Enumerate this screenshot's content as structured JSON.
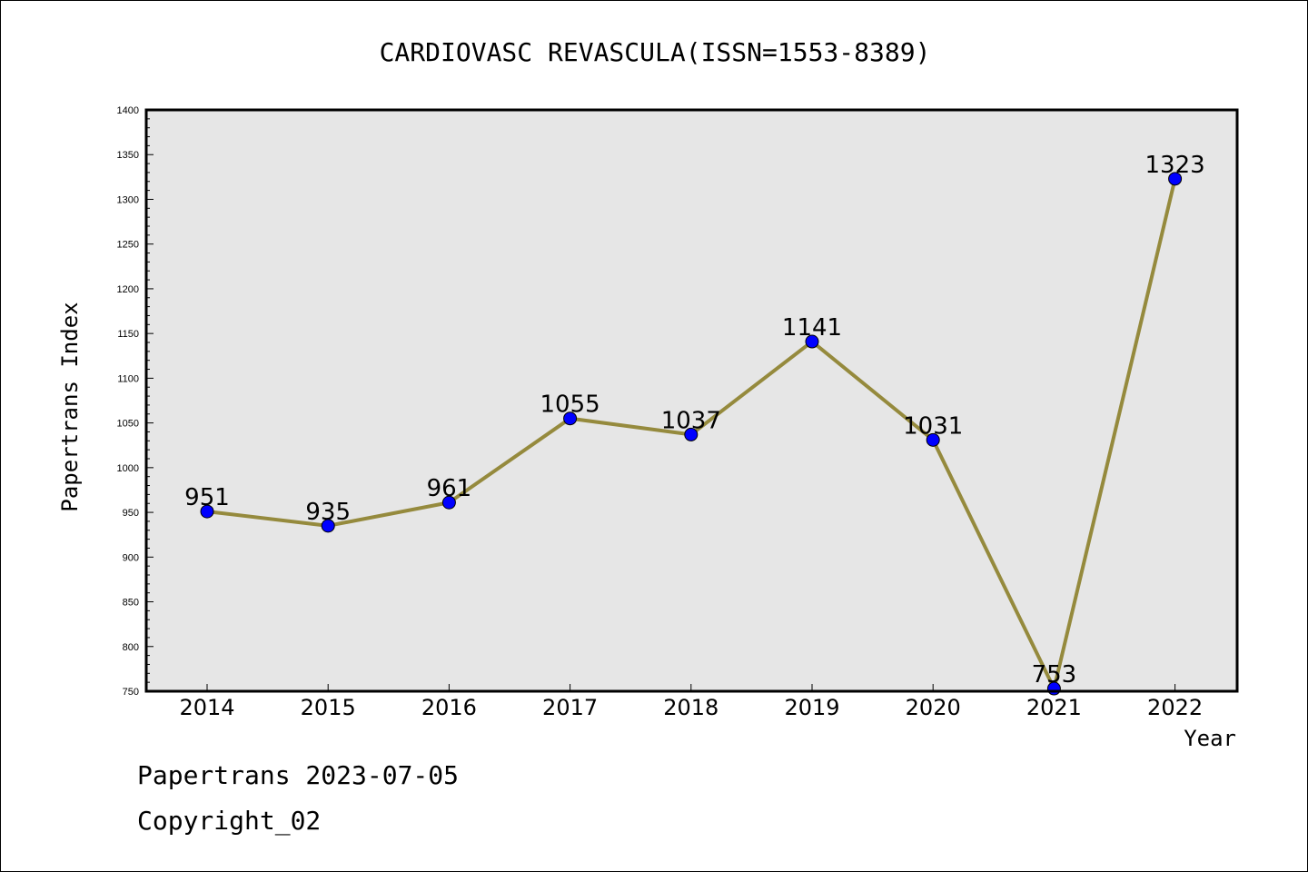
{
  "chart_data": {
    "type": "line",
    "title": "CARDIOVASC REVASCULA(ISSN=1553-8389)",
    "xlabel": "Year",
    "ylabel": "Papertrans Index",
    "categories": [
      "2014",
      "2015",
      "2016",
      "2017",
      "2018",
      "2019",
      "2020",
      "2021",
      "2022"
    ],
    "values": [
      951,
      935,
      961,
      1055,
      1037,
      1141,
      1031,
      753,
      1323
    ],
    "data_labels": [
      "951",
      "935",
      "961",
      "1055",
      "1037",
      "1141",
      "1031",
      "753",
      "1323"
    ],
    "ylim": [
      750,
      1400
    ],
    "yticks": [
      750,
      800,
      850,
      900,
      950,
      1000,
      1050,
      1100,
      1150,
      1200,
      1250,
      1300,
      1350,
      1400
    ],
    "ytick_labels": [
      "750",
      "800",
      "850",
      "900",
      "950",
      "1000",
      "1050",
      "1100",
      "1150",
      "1200",
      "1250",
      "1300",
      "1350",
      "1400"
    ],
    "grid": false,
    "colors": {
      "line": "#958a3d",
      "marker": "#0000ff",
      "plot_background": "#e6e6e6"
    }
  },
  "footer": {
    "line1": "Papertrans 2023-07-05",
    "line2": "Copyright_02"
  }
}
